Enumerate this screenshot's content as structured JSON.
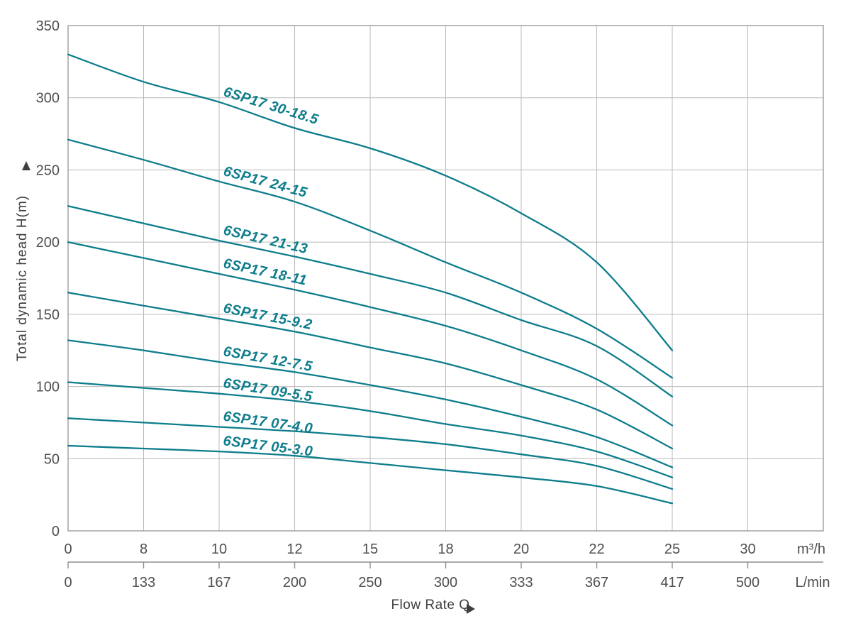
{
  "chart_data": {
    "type": "line",
    "title": "",
    "x_axis": {
      "label": "Flow Rate Q",
      "tick_labels_m3h": [
        "0",
        "8",
        "10",
        "12",
        "15",
        "18",
        "20",
        "22",
        "25",
        "30"
      ],
      "unit_m3h": "m³/h",
      "tick_labels_lmin": [
        "0",
        "133",
        "167",
        "200",
        "250",
        "300",
        "333",
        "367",
        "417",
        "500"
      ],
      "unit_lmin": "L/min"
    },
    "y_axis": {
      "label": "Total dynamic head H(m)",
      "tick_labels": [
        "350",
        "300",
        "250",
        "200",
        "150",
        "100",
        "50",
        "0"
      ],
      "range": [
        0,
        350
      ]
    },
    "x_values_m3h": [
      0,
      8,
      10,
      12,
      15,
      18,
      20,
      22,
      25
    ],
    "series": [
      {
        "name": "6SP17 30-18.5",
        "values": [
          330,
          311,
          297,
          279,
          265,
          246,
          220,
          186,
          125
        ]
      },
      {
        "name": "6SP17 24-15",
        "values": [
          271,
          257,
          242,
          228,
          208,
          186,
          165,
          140,
          106
        ]
      },
      {
        "name": "6SP17 21-13",
        "values": [
          225,
          213,
          201,
          190,
          178,
          165,
          146,
          128,
          93
        ]
      },
      {
        "name": "6SP17 18-11",
        "values": [
          200,
          189,
          178,
          167,
          155,
          142,
          125,
          105,
          73
        ]
      },
      {
        "name": "6SP17 15-9.2",
        "values": [
          165,
          156,
          147,
          138,
          127,
          116,
          101,
          84,
          57
        ]
      },
      {
        "name": "6SP17 12-7.5",
        "values": [
          132,
          125,
          117,
          110,
          101,
          91,
          79,
          65,
          44
        ]
      },
      {
        "name": "6SP17 09-5.5",
        "values": [
          103,
          99,
          95,
          90,
          83,
          74,
          66,
          55,
          37
        ]
      },
      {
        "name": "6SP17 07-4.0",
        "values": [
          78,
          75,
          72,
          69,
          65,
          60,
          53,
          45,
          29
        ]
      },
      {
        "name": "6SP17 05-3.0",
        "values": [
          59,
          57,
          55,
          52,
          47,
          42,
          37,
          31,
          19
        ]
      }
    ],
    "grid": true,
    "legend_position": "inline-curve-labels",
    "label_angles_deg": [
      17,
      15,
      13,
      12,
      11,
      10,
      9,
      8,
      7
    ],
    "colors": {
      "curve": "#0e7d8c",
      "curve_label": "#0e7d8c",
      "grid": "#bababa",
      "border": "#9c9c9c",
      "axis_line": "#8e8e8e",
      "axis_text": "#4f4f4f",
      "title_text": "#3f3f3f"
    }
  }
}
